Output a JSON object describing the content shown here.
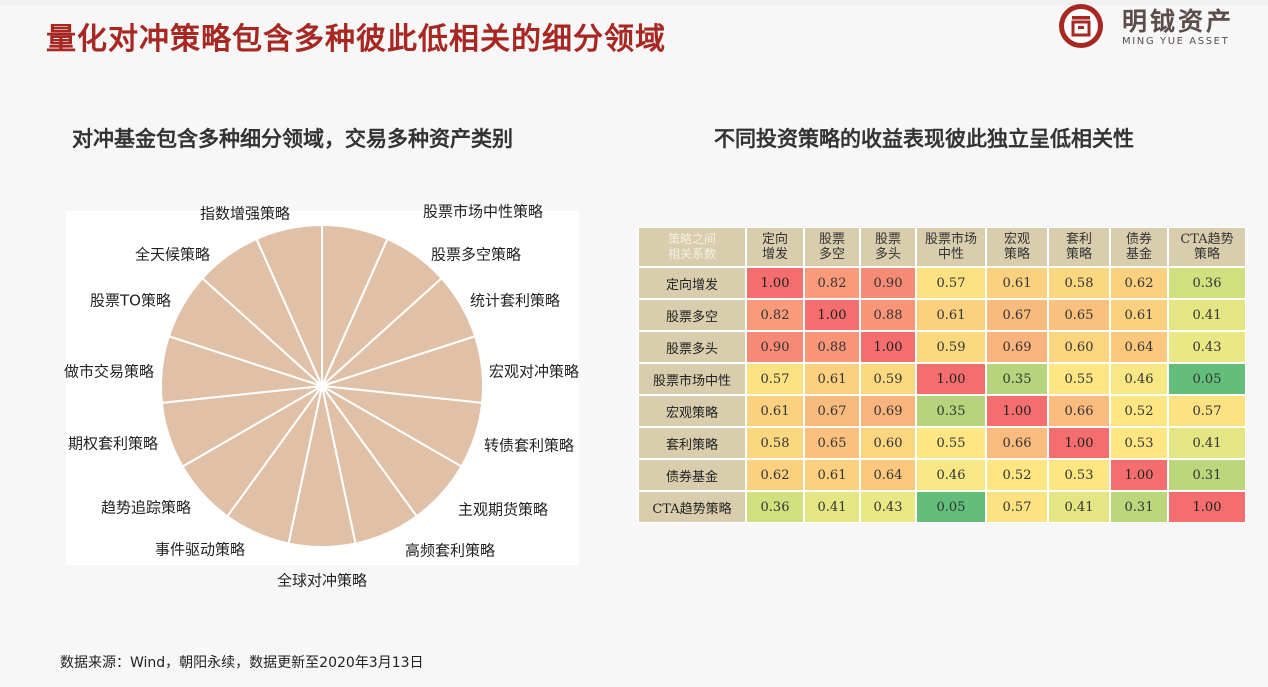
{
  "title": "量化对冲策略包含多种彼此低相关的细分领域",
  "logo": {
    "name_cn": "明钺资产",
    "name_en": "MING YUE ASSET",
    "color": "#a72722"
  },
  "left_panel": {
    "subtitle": "对冲基金包含多种细分领域，交易多种资产类别",
    "pie_color": "#e0c0a6",
    "segments": [
      "股票市场中性策略",
      "股票多空策略",
      "统计套利策略",
      "宏观对冲策略",
      "转债套利策略",
      "主观期货策略",
      "高频套利策略",
      "全球对冲策略",
      "事件驱动策略",
      "趋势追踪策略",
      "期权套利策略",
      "做市交易策略",
      "股票TO策略",
      "全天候策略",
      "指数增强策略"
    ]
  },
  "right_panel": {
    "subtitle": "不同投资策略的收益表现彼此独立呈低相关性",
    "corner_header": [
      "策略之间",
      "相关系数"
    ],
    "columns": [
      [
        "定向",
        "增发"
      ],
      [
        "股票",
        "多空"
      ],
      [
        "股票",
        "多头"
      ],
      [
        "股票市场",
        "中性"
      ],
      [
        "宏观",
        "策略"
      ],
      [
        "套利",
        "策略"
      ],
      [
        "债券",
        "基金"
      ],
      [
        "CTA趋势",
        "策略"
      ]
    ],
    "rows": [
      "定向增发",
      "股票多空",
      "股票多头",
      "股票市场中性",
      "宏观策略",
      "套利策略",
      "债券基金",
      "CTA趋势策略"
    ],
    "values": [
      [
        "1.00",
        "0.82",
        "0.90",
        "0.57",
        "0.61",
        "0.58",
        "0.62",
        "0.36"
      ],
      [
        "0.82",
        "1.00",
        "0.88",
        "0.61",
        "0.67",
        "0.65",
        "0.61",
        "0.41"
      ],
      [
        "0.90",
        "0.88",
        "1.00",
        "0.59",
        "0.69",
        "0.60",
        "0.64",
        "0.43"
      ],
      [
        "0.57",
        "0.61",
        "0.59",
        "1.00",
        "0.35",
        "0.55",
        "0.46",
        "0.05"
      ],
      [
        "0.61",
        "0.67",
        "0.69",
        "0.35",
        "1.00",
        "0.66",
        "0.52",
        "0.57"
      ],
      [
        "0.58",
        "0.65",
        "0.60",
        "0.55",
        "0.66",
        "1.00",
        "0.53",
        "0.41"
      ],
      [
        "0.62",
        "0.61",
        "0.64",
        "0.46",
        "0.52",
        "0.53",
        "1.00",
        "0.31"
      ],
      [
        "0.36",
        "0.41",
        "0.43",
        "0.05",
        "0.57",
        "0.41",
        "0.31",
        "1.00"
      ]
    ],
    "colors": [
      [
        "#f46e6f",
        "#f99b7b",
        "#f78a76",
        "#fde281",
        "#fbd180",
        "#fbd780",
        "#fbd07f",
        "#d0e07f"
      ],
      [
        "#f99b7b",
        "#f46e6f",
        "#f9967a",
        "#fbd180",
        "#f8bb7e",
        "#fac17e",
        "#fbd180",
        "#e3e683"
      ],
      [
        "#f78a76",
        "#f9967a",
        "#f46e6f",
        "#fbd97f",
        "#f9b37d",
        "#fbd67f",
        "#fbc87e",
        "#eae785"
      ],
      [
        "#fde281",
        "#fbd180",
        "#fbd97f",
        "#f46e6f",
        "#b5d47b",
        "#fee683",
        "#f7e885",
        "#63be7b"
      ],
      [
        "#fbd180",
        "#f8bb7e",
        "#f9b37d",
        "#b5d47b",
        "#f46e6f",
        "#fabb7e",
        "#fee683",
        "#fde281"
      ],
      [
        "#fbd780",
        "#fac17e",
        "#fbd67f",
        "#fee683",
        "#fabb7e",
        "#f46e6f",
        "#fee683",
        "#e3e683"
      ],
      [
        "#fbd07f",
        "#fbd180",
        "#fbc87e",
        "#f7e885",
        "#fee683",
        "#fee683",
        "#f46e6f",
        "#bcd67c"
      ],
      [
        "#d0e07f",
        "#e3e683",
        "#eae785",
        "#63be7b",
        "#fde281",
        "#e3e683",
        "#bcd67c",
        "#f46e6f"
      ]
    ]
  },
  "source": "数据来源：Wind，朝阳永续，数据更新至2020年3月13日"
}
